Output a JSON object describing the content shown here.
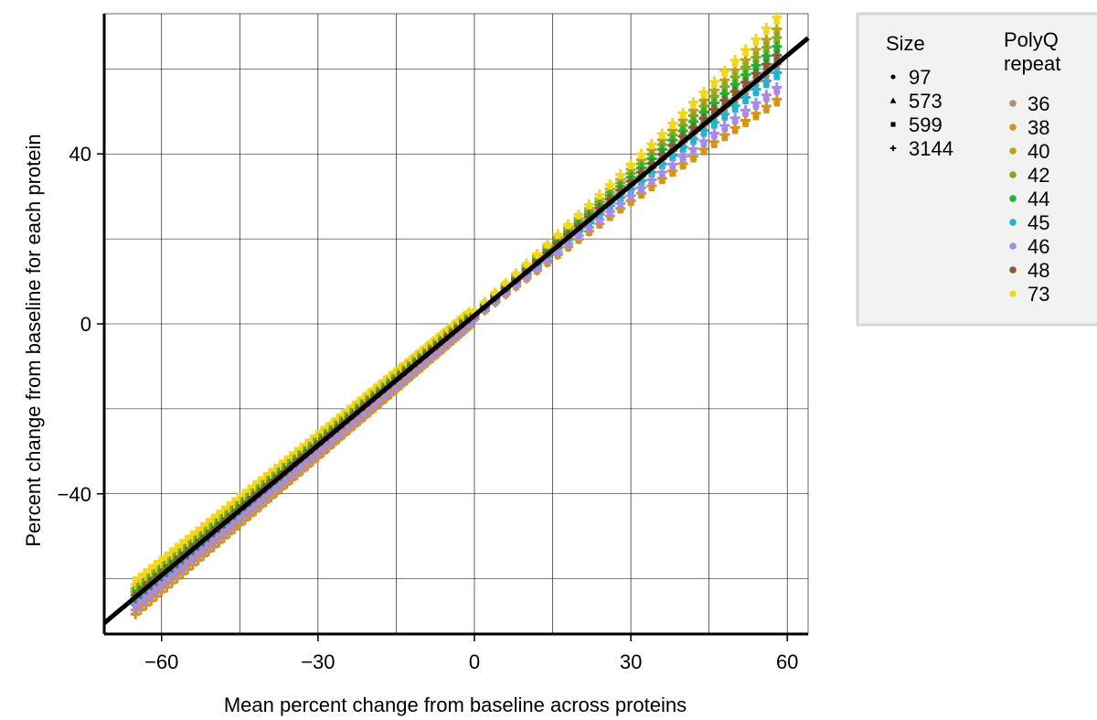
{
  "chart_data": {
    "type": "scatter",
    "xlabel": "Mean percent change from baseline across proteins",
    "ylabel": "Percent change from baseline for each protein",
    "xlim": [
      -71,
      64
    ],
    "ylim": [
      -73,
      73
    ],
    "x_ticks": [
      -60,
      -30,
      0,
      30,
      60
    ],
    "x_tick_labels": [
      "−60",
      "−30",
      "0",
      "30",
      "60"
    ],
    "y_ticks": [
      -40,
      0,
      40
    ],
    "y_tick_labels": [
      "−40",
      "0",
      "40"
    ],
    "grid": true,
    "reference_line": {
      "slope": 1.02,
      "intercept": 2,
      "color": "#000000"
    },
    "legend": {
      "placement": "outside-right",
      "size_title": "Size",
      "polyq_title_line1": "PolyQ",
      "polyq_title_line2": "repeat"
    },
    "sizes": [
      {
        "label": "97",
        "marker": "circle"
      },
      {
        "label": "573",
        "marker": "triangle"
      },
      {
        "label": "599",
        "marker": "square"
      },
      {
        "label": "3144",
        "marker": "plus"
      }
    ],
    "polyq": [
      {
        "label": "36",
        "color": "#a8907f",
        "offset": -0.2
      },
      {
        "label": "38",
        "color": "#d4951a",
        "offset": -2.6
      },
      {
        "label": "40",
        "color": "#b8a21e",
        "offset": 2.2
      },
      {
        "label": "42",
        "color": "#7fac1f",
        "offset": 1.6
      },
      {
        "label": "44",
        "color": "#22b030",
        "offset": 1.0
      },
      {
        "label": "45",
        "color": "#22b3cf",
        "offset": -0.8
      },
      {
        "label": "46",
        "color": "#a78be8",
        "offset": -1.8
      },
      {
        "label": "48",
        "color": "#8c5a32",
        "offset": 0.4
      },
      {
        "label": "73",
        "color": "#f2d81c",
        "offset": 3.0
      }
    ],
    "x_values": [
      -65,
      -64,
      -63,
      -62,
      -61,
      -60,
      -59,
      -58,
      -57,
      -56,
      -55,
      -54,
      -53,
      -52,
      -51,
      -50,
      -49,
      -48,
      -47,
      -46,
      -45,
      -44,
      -43,
      -42,
      -41,
      -40,
      -39,
      -38,
      -37,
      -36,
      -35,
      -34,
      -33,
      -32,
      -31,
      -30,
      -29,
      -28,
      -27,
      -26,
      -25,
      -24,
      -23,
      -22,
      -21,
      -20,
      -19,
      -18,
      -17,
      -16,
      -15,
      -14,
      -13,
      -12,
      -11,
      -10,
      -9,
      -8,
      -7,
      -6,
      -5,
      -4,
      -3,
      -2,
      -1,
      0,
      2,
      4,
      6,
      8,
      10,
      12,
      14,
      16,
      18,
      20,
      22,
      24,
      26,
      28,
      30,
      32,
      34,
      36,
      38,
      40,
      42,
      44,
      46,
      48,
      50,
      52,
      54,
      56,
      58
    ]
  }
}
